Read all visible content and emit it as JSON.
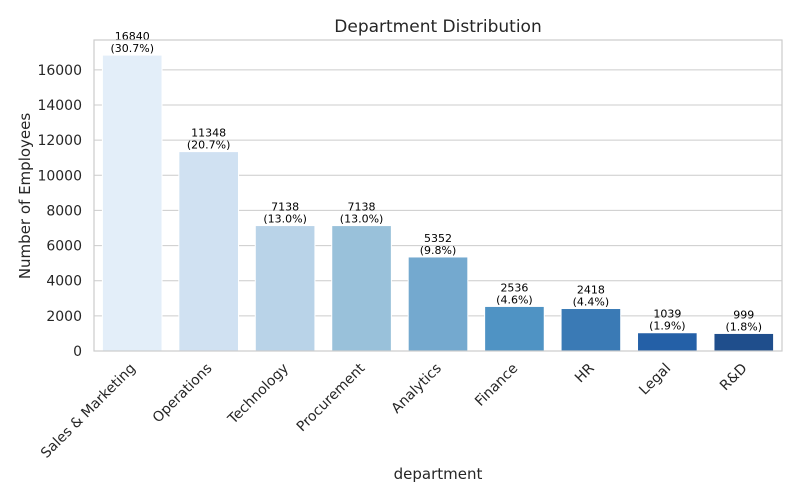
{
  "chart_data": {
    "type": "bar",
    "title": "Department Distribution",
    "xlabel": "department",
    "ylabel": "Number of Employees",
    "categories": [
      "Sales & Marketing",
      "Operations",
      "Technology",
      "Procurement",
      "Analytics",
      "Finance",
      "HR",
      "Legal",
      "R&D"
    ],
    "values": [
      16840,
      11348,
      7138,
      7138,
      5352,
      2536,
      2418,
      1039,
      999
    ],
    "percent_labels": [
      "(30.7%)",
      "(20.7%)",
      "(13.0%)",
      "(13.0%)",
      "(9.8%)",
      "(4.6%)",
      "(4.4%)",
      "(1.9%)",
      "(1.8%)"
    ],
    "ylim": [
      0,
      17700
    ],
    "yticks": [
      0,
      2000,
      4000,
      6000,
      8000,
      10000,
      12000,
      14000,
      16000
    ],
    "grid": "horizontal",
    "palette": "blues",
    "colors": [
      "#e3eef9",
      "#d0e1f2",
      "#b9d3e8",
      "#99c1da",
      "#74a9cf",
      "#4f93c4",
      "#3a7ab5",
      "#2460a7",
      "#1f4e8c"
    ]
  }
}
